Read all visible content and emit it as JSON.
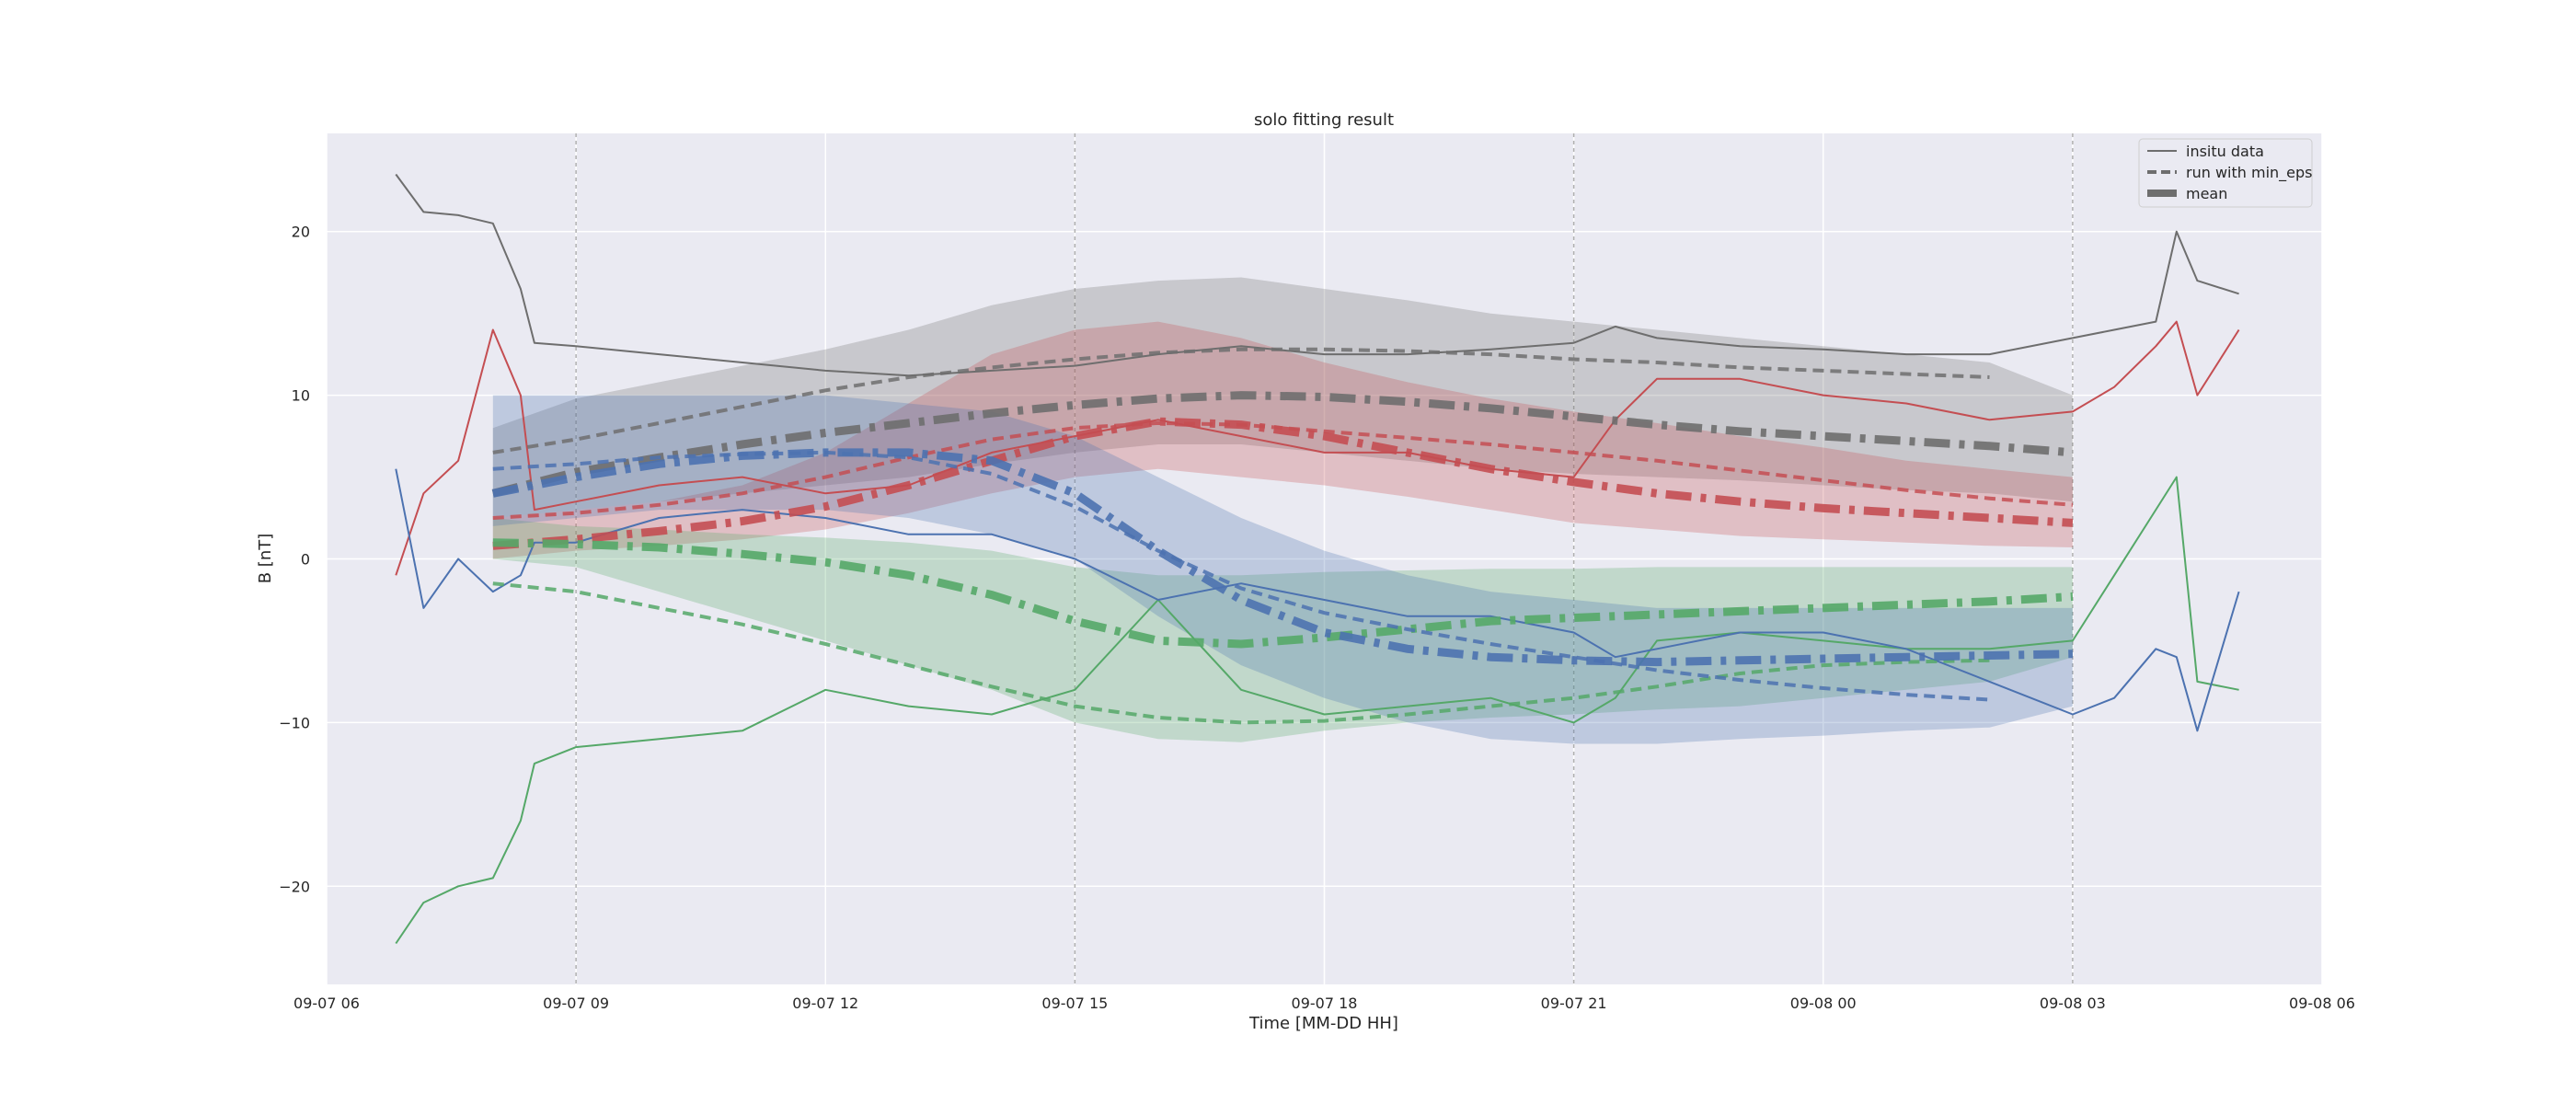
{
  "chart_data": {
    "type": "line",
    "title": "solo fitting result",
    "xlabel": "Time [MM-DD HH]",
    "ylabel": "B [nT]",
    "xlim": [
      "2023-09-07 06:00",
      "2023-09-08 06:00"
    ],
    "ylim": [
      -26,
      26
    ],
    "x_ticks": [
      {
        "t": "2023-09-07 06:00",
        "label": "09-07 06"
      },
      {
        "t": "2023-09-07 09:00",
        "label": "09-07 09"
      },
      {
        "t": "2023-09-07 12:00",
        "label": "09-07 12"
      },
      {
        "t": "2023-09-07 15:00",
        "label": "09-07 15"
      },
      {
        "t": "2023-09-07 18:00",
        "label": "09-07 18"
      },
      {
        "t": "2023-09-07 21:00",
        "label": "09-07 21"
      },
      {
        "t": "2023-09-08 00:00",
        "label": "09-08 00"
      },
      {
        "t": "2023-09-08 03:00",
        "label": "09-08 03"
      },
      {
        "t": "2023-09-08 06:00",
        "label": "09-08 06"
      }
    ],
    "y_ticks": [
      -20,
      -10,
      0,
      10,
      20
    ],
    "fit_boundaries": [
      "2023-09-07 09:00",
      "2023-09-07 15:00",
      "2023-09-07 21:00",
      "2023-09-08 03:00"
    ],
    "grid": true,
    "legend": {
      "placement": "top-right",
      "entries": [
        {
          "label": "insitu data",
          "style": "thin"
        },
        {
          "label": "run with min_eps",
          "style": "dashed"
        },
        {
          "label": "mean",
          "style": "thick"
        }
      ]
    },
    "colors": {
      "Bt": "#6e6e6e",
      "Bx": "#c44e52",
      "By": "#55a868",
      "Bz": "#4c72b0"
    },
    "insitu": {
      "x": [
        "2023-09-07 06:50",
        "2023-09-07 07:10",
        "2023-09-07 07:35",
        "2023-09-07 08:00",
        "2023-09-07 08:20",
        "2023-09-07 08:30",
        "2023-09-07 09:00",
        "2023-09-07 10:00",
        "2023-09-07 11:00",
        "2023-09-07 12:00",
        "2023-09-07 13:00",
        "2023-09-07 14:00",
        "2023-09-07 15:00",
        "2023-09-07 16:00",
        "2023-09-07 17:00",
        "2023-09-07 18:00",
        "2023-09-07 19:00",
        "2023-09-07 20:00",
        "2023-09-07 21:00",
        "2023-09-07 21:30",
        "2023-09-07 22:00",
        "2023-09-07 23:00",
        "2023-09-08 00:00",
        "2023-09-08 01:00",
        "2023-09-08 02:00",
        "2023-09-08 03:00",
        "2023-09-08 03:30",
        "2023-09-08 04:00",
        "2023-09-08 04:15",
        "2023-09-08 04:30",
        "2023-09-08 05:00"
      ],
      "series": [
        {
          "component": "Bt",
          "values": [
            23.5,
            21.2,
            21.0,
            20.5,
            16.5,
            13.2,
            13.0,
            12.5,
            12.0,
            11.5,
            11.2,
            11.5,
            11.8,
            12.5,
            13.0,
            12.5,
            12.5,
            12.8,
            13.2,
            14.2,
            13.5,
            13.0,
            12.8,
            12.5,
            12.5,
            13.5,
            14.0,
            14.5,
            20.0,
            17.0,
            16.2
          ]
        },
        {
          "component": "Bx",
          "values": [
            -1.0,
            4.0,
            6.0,
            14.0,
            10.0,
            3.0,
            3.5,
            4.5,
            5.0,
            4.0,
            4.5,
            6.5,
            7.5,
            8.5,
            7.5,
            6.5,
            6.5,
            5.5,
            5.0,
            8.5,
            11.0,
            11.0,
            10.0,
            9.5,
            8.5,
            9.0,
            10.5,
            13.0,
            14.5,
            10.0,
            14.0
          ]
        },
        {
          "component": "By",
          "values": [
            -23.5,
            -21.0,
            -20.0,
            -19.5,
            -16.0,
            -12.5,
            -11.5,
            -11.0,
            -10.5,
            -8.0,
            -9.0,
            -9.5,
            -8.0,
            -2.5,
            -8.0,
            -9.5,
            -9.0,
            -8.5,
            -10.0,
            -8.5,
            -5.0,
            -4.5,
            -5.0,
            -5.5,
            -5.5,
            -5.0,
            -1.0,
            3.0,
            5.0,
            -7.5,
            -8.0
          ]
        },
        {
          "component": "Bz",
          "values": [
            5.5,
            -3.0,
            0.0,
            -2.0,
            -1.0,
            1.0,
            1.0,
            2.5,
            3.0,
            2.5,
            1.5,
            1.5,
            0.0,
            -2.5,
            -1.5,
            -2.5,
            -3.5,
            -3.5,
            -4.5,
            -6.0,
            -5.5,
            -4.5,
            -4.5,
            -5.5,
            -7.5,
            -9.5,
            -8.5,
            -5.5,
            -6.0,
            -10.5,
            -2.0
          ]
        }
      ]
    },
    "fit": {
      "x": [
        "2023-09-07 08:00",
        "2023-09-07 09:00",
        "2023-09-07 10:00",
        "2023-09-07 11:00",
        "2023-09-07 12:00",
        "2023-09-07 13:00",
        "2023-09-07 14:00",
        "2023-09-07 15:00",
        "2023-09-07 16:00",
        "2023-09-07 17:00",
        "2023-09-07 18:00",
        "2023-09-07 19:00",
        "2023-09-07 20:00",
        "2023-09-07 21:00",
        "2023-09-07 22:00",
        "2023-09-07 23:00",
        "2023-09-08 00:00",
        "2023-09-08 01:00",
        "2023-09-08 02:00",
        "2023-09-08 03:00"
      ],
      "series": [
        {
          "component": "Bt",
          "mean": [
            4.0,
            5.3,
            6.2,
            7.0,
            7.7,
            8.3,
            8.9,
            9.4,
            9.8,
            10.0,
            9.9,
            9.6,
            9.2,
            8.7,
            8.2,
            7.8,
            7.5,
            7.2,
            6.9,
            6.5
          ],
          "min_eps": [
            6.5,
            7.3,
            8.3,
            9.3,
            10.3,
            11.1,
            11.7,
            12.2,
            12.6,
            12.8,
            12.8,
            12.7,
            12.5,
            12.2,
            12.0,
            11.7,
            11.5,
            11.3,
            11.1,
            null
          ],
          "upper": [
            8.0,
            9.8,
            10.8,
            11.8,
            12.8,
            14.0,
            15.5,
            16.5,
            17.0,
            17.2,
            16.5,
            15.8,
            15.0,
            14.5,
            14.0,
            13.5,
            13.0,
            12.5,
            12.0,
            10.0
          ],
          "lower": [
            2.5,
            3.0,
            3.5,
            4.0,
            4.5,
            5.0,
            5.8,
            6.5,
            7.0,
            7.0,
            6.5,
            6.0,
            5.5,
            5.2,
            5.0,
            4.8,
            4.5,
            4.2,
            4.0,
            3.5
          ]
        },
        {
          "component": "Bx",
          "mean": [
            0.8,
            1.2,
            1.7,
            2.3,
            3.2,
            4.5,
            6.0,
            7.5,
            8.4,
            8.2,
            7.5,
            6.5,
            5.5,
            4.7,
            4.0,
            3.5,
            3.1,
            2.8,
            2.5,
            2.2
          ],
          "min_eps": [
            2.5,
            2.8,
            3.3,
            4.0,
            5.0,
            6.2,
            7.3,
            8.0,
            8.3,
            8.2,
            7.8,
            7.4,
            7.0,
            6.5,
            6.0,
            5.4,
            4.8,
            4.2,
            3.7,
            3.3
          ],
          "upper": [
            2.5,
            3.0,
            3.5,
            4.5,
            6.5,
            9.5,
            12.5,
            14.0,
            14.5,
            13.5,
            12.0,
            10.8,
            9.8,
            9.0,
            8.3,
            7.5,
            6.8,
            6.0,
            5.5,
            5.0
          ],
          "lower": [
            0.0,
            0.5,
            0.8,
            1.2,
            1.8,
            2.8,
            4.0,
            5.0,
            5.5,
            5.0,
            4.5,
            3.8,
            3.0,
            2.2,
            1.8,
            1.4,
            1.2,
            1.0,
            0.8,
            0.7
          ]
        },
        {
          "component": "By",
          "mean": [
            1.0,
            0.9,
            0.7,
            0.3,
            -0.2,
            -1.0,
            -2.2,
            -3.8,
            -5.0,
            -5.2,
            -4.8,
            -4.3,
            -3.8,
            -3.6,
            -3.4,
            -3.2,
            -3.0,
            -2.8,
            -2.6,
            -2.3
          ],
          "min_eps": [
            -1.5,
            -2.0,
            -3.0,
            -4.0,
            -5.2,
            -6.5,
            -7.8,
            -9.0,
            -9.7,
            -10.0,
            -9.9,
            -9.5,
            -9.0,
            -8.5,
            -7.8,
            -7.0,
            -6.5,
            -6.3,
            -6.2,
            null
          ],
          "upper": [
            2.5,
            2.0,
            1.8,
            1.5,
            1.3,
            1.0,
            0.5,
            -0.5,
            -1.0,
            -1.0,
            -0.8,
            -0.7,
            -0.6,
            -0.6,
            -0.5,
            -0.5,
            -0.5,
            -0.5,
            -0.5,
            -0.5
          ],
          "lower": [
            0.0,
            -0.5,
            -2.0,
            -3.5,
            -5.0,
            -6.5,
            -8.0,
            -10.0,
            -11.0,
            -11.2,
            -10.5,
            -10.0,
            -9.7,
            -9.5,
            -9.2,
            -9.0,
            -8.5,
            -8.0,
            -7.5,
            -6.0
          ]
        },
        {
          "component": "Bz",
          "mean": [
            4.0,
            5.0,
            5.8,
            6.3,
            6.5,
            6.5,
            6.0,
            4.0,
            0.5,
            -2.5,
            -4.5,
            -5.5,
            -6.0,
            -6.2,
            -6.3,
            -6.2,
            -6.1,
            -6.0,
            -5.9,
            -5.8
          ],
          "min_eps": [
            5.5,
            5.8,
            6.2,
            6.4,
            6.5,
            6.2,
            5.2,
            3.2,
            0.5,
            -1.8,
            -3.3,
            -4.3,
            -5.2,
            -6.0,
            -6.8,
            -7.4,
            -7.9,
            -8.3,
            -8.6,
            null
          ],
          "upper": [
            10.0,
            10.0,
            10.0,
            10.0,
            10.0,
            9.5,
            9.0,
            7.5,
            5.0,
            2.5,
            0.5,
            -1.0,
            -2.0,
            -2.5,
            -3.0,
            -3.0,
            -3.0,
            -3.0,
            -3.0,
            -3.0
          ],
          "lower": [
            2.0,
            2.5,
            3.0,
            3.0,
            3.0,
            2.5,
            1.5,
            0.0,
            -3.5,
            -6.5,
            -8.5,
            -10.0,
            -11.0,
            -11.3,
            -11.3,
            -11.0,
            -10.8,
            -10.5,
            -10.3,
            -9.0
          ]
        }
      ]
    }
  }
}
